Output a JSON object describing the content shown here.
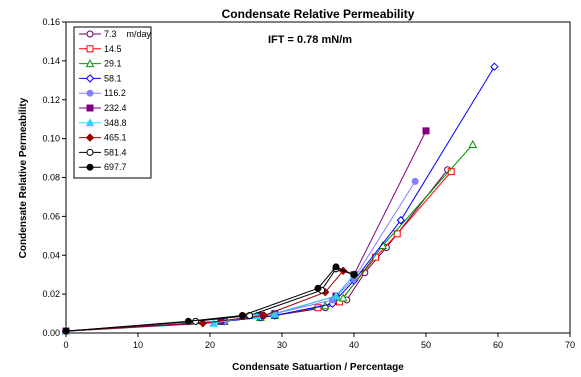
{
  "chart_data": {
    "type": "scatter",
    "title": "Condensate Relative Permeability",
    "annotation": "IFT = 0.78 mN/m",
    "xlabel": "Condensate Satuartion / Percentage",
    "ylabel": "Condensate Relative Permeability",
    "xlim": [
      0,
      70
    ],
    "ylim": [
      0,
      0.16
    ],
    "x_ticks": [
      "0",
      "10",
      "20",
      "30",
      "40",
      "50",
      "60",
      "70"
    ],
    "y_ticks": [
      "0.00",
      "0.02",
      "0.04",
      "0.06",
      "0.08",
      "0.10",
      "0.12",
      "0.14",
      "0.16"
    ],
    "x_tick_values": [
      0,
      10,
      20,
      30,
      40,
      50,
      60,
      70
    ],
    "y_tick_values": [
      0,
      0.02,
      0.04,
      0.06,
      0.08,
      0.1,
      0.12,
      0.14,
      0.16
    ],
    "grid": false,
    "legend_position": "top-left",
    "series": [
      {
        "name": "7.3    m/day",
        "color": "#660066",
        "marker": "circle-open",
        "x": [
          0,
          22,
          27,
          29,
          36,
          39,
          41.5,
          44.5,
          53
        ],
        "y": [
          0.001,
          0.006,
          0.008,
          0.009,
          0.013,
          0.017,
          0.031,
          0.044,
          0.084
        ]
      },
      {
        "name": "14.5",
        "color": "#ff0000",
        "marker": "square-open",
        "x": [
          0,
          22,
          27,
          29,
          35,
          38,
          43,
          46,
          53.5
        ],
        "y": [
          0.001,
          0.006,
          0.008,
          0.009,
          0.013,
          0.016,
          0.039,
          0.051,
          0.083
        ]
      },
      {
        "name": "29.1",
        "color": "#009900",
        "marker": "triangle-open",
        "x": [
          0,
          22,
          27,
          29,
          36,
          38.5,
          44,
          56.5
        ],
        "y": [
          0.001,
          0.006,
          0.008,
          0.009,
          0.014,
          0.018,
          0.045,
          0.097
        ]
      },
      {
        "name": "58.1",
        "color": "#0000ff",
        "marker": "diamond-open",
        "x": [
          0,
          22,
          27,
          29,
          37,
          40,
          46.5,
          59.5
        ],
        "y": [
          0.001,
          0.006,
          0.008,
          0.009,
          0.015,
          0.027,
          0.058,
          0.137
        ]
      },
      {
        "name": "116.2",
        "color": "#8080ff",
        "marker": "circle-filled",
        "x": [
          0,
          22,
          27,
          29,
          37,
          40,
          48.5
        ],
        "y": [
          0.001,
          0.006,
          0.009,
          0.01,
          0.017,
          0.028,
          0.078
        ]
      },
      {
        "name": "232.4",
        "color": "#800080",
        "marker": "square-filled",
        "x": [
          0,
          21.5,
          27,
          29,
          37.5,
          40,
          50
        ],
        "y": [
          0.001,
          0.006,
          0.009,
          0.01,
          0.019,
          0.03,
          0.104
        ]
      },
      {
        "name": "348.8",
        "color": "#33ccff",
        "marker": "triangle-filled",
        "x": [
          0,
          20.5,
          26.5,
          29,
          37.5,
          40
        ],
        "y": [
          0.001,
          0.005,
          0.009,
          0.01,
          0.019,
          0.03
        ]
      },
      {
        "name": "465.1",
        "color": "#990000",
        "marker": "diamond-filled",
        "x": [
          0,
          19,
          27.5,
          36,
          38.5,
          40
        ],
        "y": [
          0.001,
          0.005,
          0.009,
          0.021,
          0.032,
          0.03
        ]
      },
      {
        "name": "581.4",
        "color": "#000000",
        "marker": "circle-open",
        "x": [
          0,
          18,
          25.5,
          35.5,
          37.5,
          40
        ],
        "y": [
          0.001,
          0.006,
          0.009,
          0.022,
          0.033,
          0.03
        ]
      },
      {
        "name": "697.7",
        "color": "#000000",
        "marker": "circle-filled",
        "x": [
          0,
          17,
          24.5,
          35,
          37.5,
          40
        ],
        "y": [
          0.001,
          0.006,
          0.009,
          0.023,
          0.034,
          0.03
        ]
      }
    ]
  }
}
